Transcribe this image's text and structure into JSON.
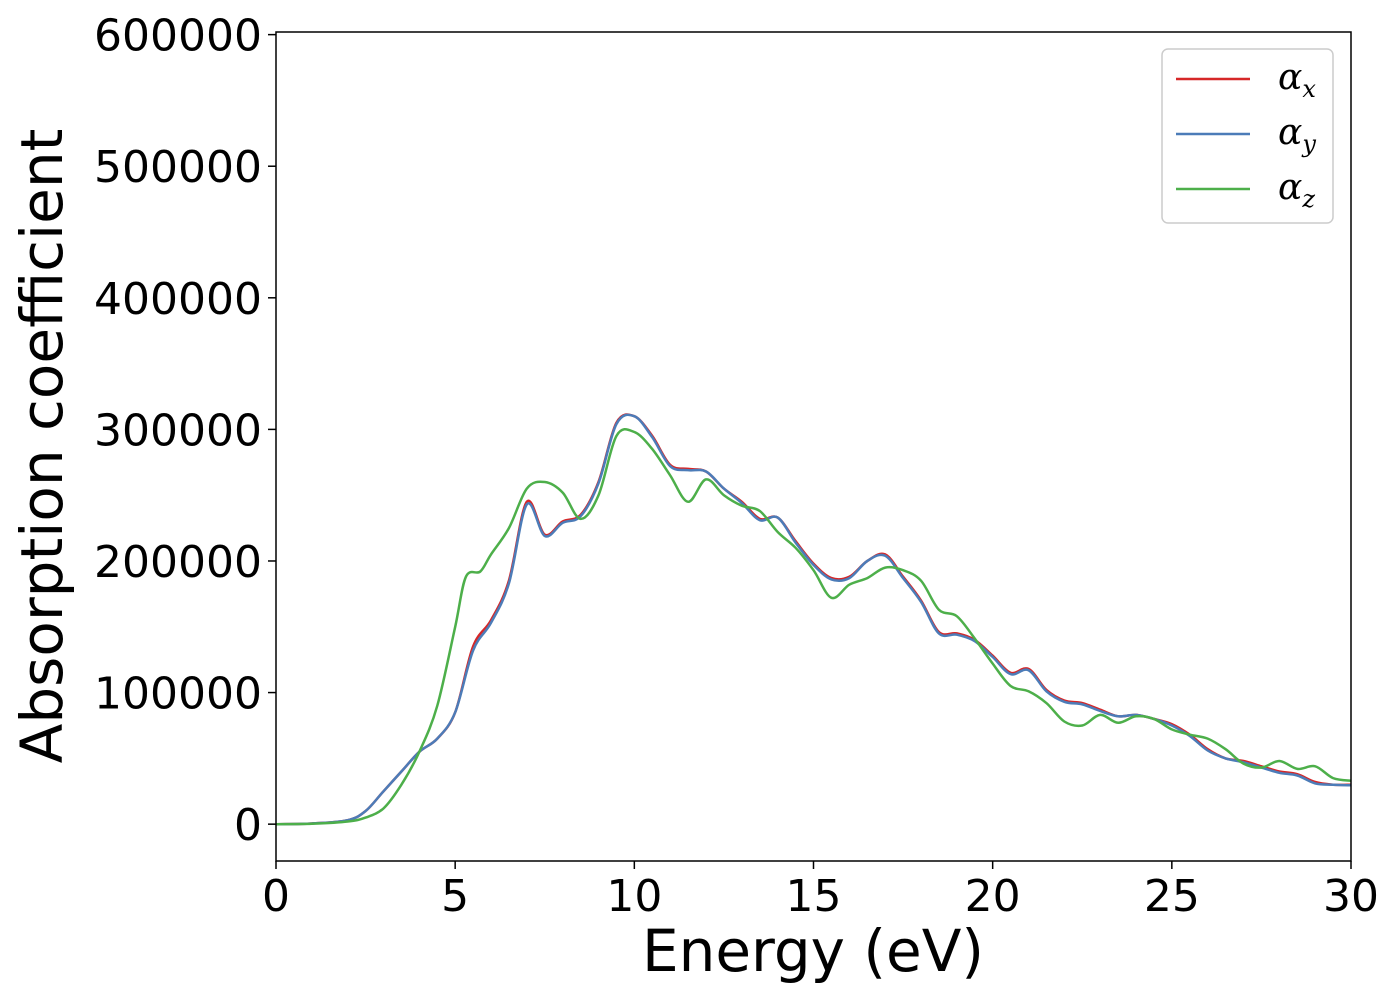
{
  "chart_data": {
    "type": "line",
    "title": "",
    "xlabel": "Energy (eV)",
    "ylabel": "Absorption coefficient",
    "xlim": [
      0,
      30
    ],
    "ylim": [
      -28000,
      602000
    ],
    "xticks": [
      0,
      5,
      10,
      15,
      20,
      25,
      30
    ],
    "yticks": [
      0,
      100000,
      200000,
      300000,
      400000,
      500000,
      600000
    ],
    "xtick_labels": [
      "0",
      "5",
      "10",
      "15",
      "20",
      "25",
      "30"
    ],
    "ytick_labels": [
      "0",
      "100000",
      "200000",
      "300000",
      "400000",
      "500000",
      "600000"
    ],
    "grid": false,
    "legend_position": "top-right",
    "series": [
      {
        "name_base": "α",
        "name_sub": "x",
        "color": "#d62728",
        "x": [
          0,
          1,
          2,
          2.5,
          3,
          3.5,
          4,
          4.5,
          5,
          5.5,
          6,
          6.5,
          7,
          7.5,
          8,
          8.5,
          9,
          9.5,
          10,
          10.5,
          11,
          11.5,
          12,
          12.5,
          13,
          13.5,
          14,
          14.5,
          15,
          15.5,
          16,
          16.5,
          17,
          17.5,
          18,
          18.5,
          19,
          19.5,
          20,
          20.5,
          21,
          21.5,
          22,
          22.5,
          23,
          23.5,
          24,
          24.5,
          25,
          25.5,
          26,
          26.5,
          27,
          27.5,
          28,
          28.5,
          29,
          29.5,
          30
        ],
        "y": [
          0,
          500,
          3000,
          10000,
          25000,
          40000,
          55000,
          65000,
          85000,
          135000,
          155000,
          185000,
          245000,
          220000,
          230000,
          235000,
          260000,
          305000,
          310000,
          295000,
          273000,
          270000,
          268000,
          255000,
          245000,
          232000,
          233000,
          215000,
          198000,
          187000,
          188000,
          200000,
          205000,
          188000,
          170000,
          146000,
          145000,
          140000,
          128000,
          115000,
          118000,
          102000,
          94000,
          92000,
          87000,
          82000,
          83000,
          80000,
          76000,
          68000,
          57000,
          50000,
          48000,
          44000,
          40000,
          38000,
          32000,
          30000,
          30000
        ]
      },
      {
        "name_base": "α",
        "name_sub": "y",
        "color": "#4c7cb8",
        "x": [
          0,
          1,
          2,
          2.5,
          3,
          3.5,
          4,
          4.5,
          5,
          5.5,
          6,
          6.5,
          7,
          7.5,
          8,
          8.5,
          9,
          9.5,
          10,
          10.5,
          11,
          11.5,
          12,
          12.5,
          13,
          13.5,
          14,
          14.5,
          15,
          15.5,
          16,
          16.5,
          17,
          17.5,
          18,
          18.5,
          19,
          19.5,
          20,
          20.5,
          21,
          21.5,
          22,
          22.5,
          23,
          23.5,
          24,
          24.5,
          25,
          25.5,
          26,
          26.5,
          27,
          27.5,
          28,
          28.5,
          29,
          29.5,
          30
        ],
        "y": [
          0,
          500,
          3000,
          10000,
          25000,
          40000,
          55000,
          65000,
          85000,
          132000,
          153000,
          183000,
          243000,
          219000,
          229000,
          234000,
          259000,
          304000,
          310000,
          294000,
          272000,
          269000,
          268000,
          255000,
          244000,
          231000,
          233000,
          214000,
          197000,
          186000,
          187000,
          200000,
          204000,
          187000,
          169000,
          145000,
          144000,
          139000,
          127000,
          114000,
          117000,
          101000,
          93000,
          91000,
          86000,
          82000,
          83000,
          80000,
          75000,
          67000,
          56000,
          50000,
          47000,
          43000,
          39000,
          37000,
          31000,
          30000,
          29500
        ]
      },
      {
        "name_base": "α",
        "name_sub": "z",
        "color": "#4daf4a",
        "x": [
          0,
          1,
          2,
          2.5,
          3,
          3.5,
          4,
          4.5,
          5,
          5.3,
          5.7,
          6,
          6.5,
          7,
          7.5,
          8,
          8.5,
          9,
          9.5,
          10,
          10.5,
          11,
          11.5,
          12,
          12.5,
          13,
          13.5,
          14,
          14.5,
          15,
          15.5,
          16,
          16.5,
          17,
          17.5,
          18,
          18.5,
          19,
          19.5,
          20,
          20.5,
          21,
          21.5,
          22,
          22.5,
          23,
          23.5,
          24,
          24.5,
          25,
          25.5,
          26,
          26.5,
          27,
          27.5,
          28,
          28.5,
          29,
          29.5,
          30
        ],
        "y": [
          0,
          300,
          2000,
          5000,
          12000,
          30000,
          55000,
          90000,
          150000,
          188000,
          192000,
          205000,
          225000,
          255000,
          260000,
          252000,
          232000,
          250000,
          295000,
          298000,
          285000,
          265000,
          245000,
          262000,
          250000,
          242000,
          238000,
          222000,
          210000,
          193000,
          172000,
          182000,
          187000,
          195000,
          193000,
          185000,
          163000,
          158000,
          141000,
          122000,
          105000,
          101000,
          92000,
          78000,
          75000,
          83000,
          77000,
          82000,
          80000,
          72000,
          68000,
          65000,
          57000,
          46000,
          43000,
          48000,
          42000,
          44000,
          35000,
          33000
        ]
      }
    ]
  }
}
